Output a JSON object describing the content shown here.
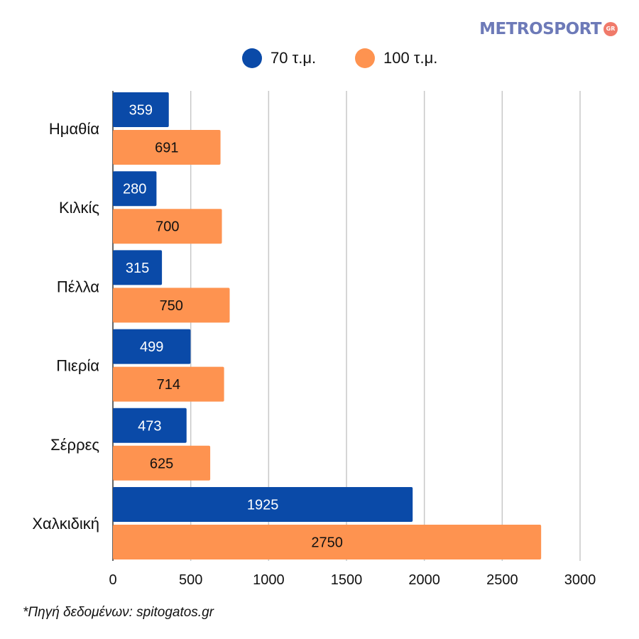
{
  "brand": {
    "name": "METROSPORT",
    "suffix": "GR"
  },
  "colors": {
    "series1": "#0a4aa8",
    "series2": "#fe9350",
    "grid": "#c8c8c8",
    "axis": "#333333"
  },
  "source_note": "*Πηγή δεδομένων:  spitogatos.gr",
  "chart_data": {
    "type": "bar",
    "orientation": "horizontal",
    "title": "",
    "xlabel": "",
    "ylabel": "",
    "categories": [
      "Ημαθία",
      "Κιλκίς",
      "Πέλλα",
      "Πιερία",
      "Σέρρες",
      "Χαλκιδική"
    ],
    "series": [
      {
        "name": "70 τ.μ.",
        "color": "#0a4aa8",
        "label_color": "#ffffff",
        "values": [
          359,
          280,
          315,
          499,
          473,
          1925
        ]
      },
      {
        "name": "100 τ.μ.",
        "color": "#fe9350",
        "label_color": "#111111",
        "values": [
          691,
          700,
          750,
          714,
          625,
          2750
        ]
      }
    ],
    "xlim": [
      0,
      3000
    ],
    "xticks": [
      0,
      500,
      1000,
      1500,
      2000,
      2500,
      3000
    ],
    "grid": true,
    "legend_position": "top-center"
  }
}
